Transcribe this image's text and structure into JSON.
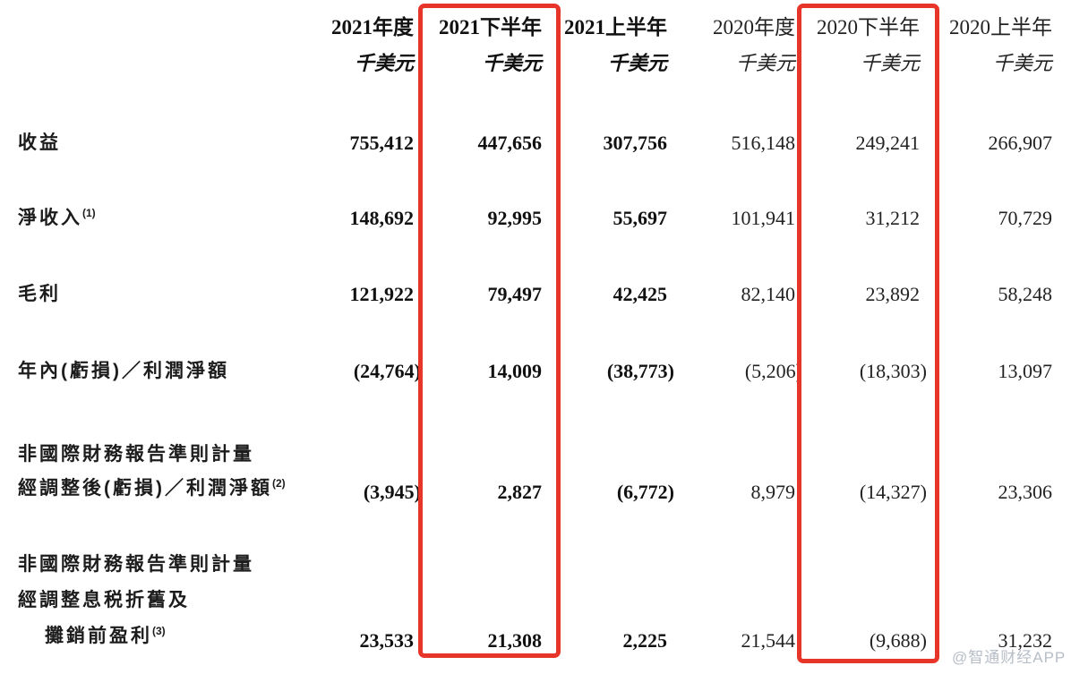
{
  "table": {
    "header": {
      "columns": [
        {
          "period": "2021年度",
          "unit": "千美元"
        },
        {
          "period": "2021下半年",
          "unit": "千美元"
        },
        {
          "period": "2021上半年",
          "unit": "千美元"
        },
        {
          "period": "2020年度",
          "unit": "千美元"
        },
        {
          "period": "2020下半年",
          "unit": "千美元"
        },
        {
          "period": "2020上半年",
          "unit": "千美元"
        }
      ]
    },
    "rows": [
      {
        "label": "收益",
        "values": [
          "755,412",
          "447,656",
          "307,756",
          "516,148",
          "249,241",
          "266,907"
        ]
      },
      {
        "label": "淨收入",
        "footnote": "(1)",
        "values": [
          "148,692",
          "92,995",
          "55,697",
          "101,941",
          "31,212",
          "70,729"
        ]
      },
      {
        "label": "毛利",
        "values": [
          "121,922",
          "79,497",
          "42,425",
          "82,140",
          "23,892",
          "58,248"
        ]
      },
      {
        "label": "年內(虧損)／利潤淨額",
        "values": [
          "(24,764)",
          "14,009",
          "(38,773)",
          "(5,206)",
          "(18,303)",
          "13,097"
        ]
      },
      {
        "label_lines": [
          "非國際財務報告準則計量",
          "經調整後(虧損)／利潤淨額"
        ],
        "footnote": "(2)",
        "values": [
          "(3,945)",
          "2,827",
          "(6,772)",
          "8,979",
          "(14,327)",
          "23,306"
        ]
      },
      {
        "label_lines": [
          "非國際財務報告準則計量",
          "經調整息税折舊及",
          "攤銷前盈利"
        ],
        "footnote": "(3)",
        "values": [
          "23,533",
          "21,308",
          "2,225",
          "21,544",
          "(9,688)",
          "31,232"
        ]
      }
    ],
    "highlighted_columns": [
      "2021下半年",
      "2020下半年"
    ]
  },
  "watermark": "@智通财经APP",
  "colors": {
    "highlight_box": "#e8352a",
    "text": "#1a1a1a",
    "watermark": "#b7bdc7",
    "background": "#ffffff"
  }
}
